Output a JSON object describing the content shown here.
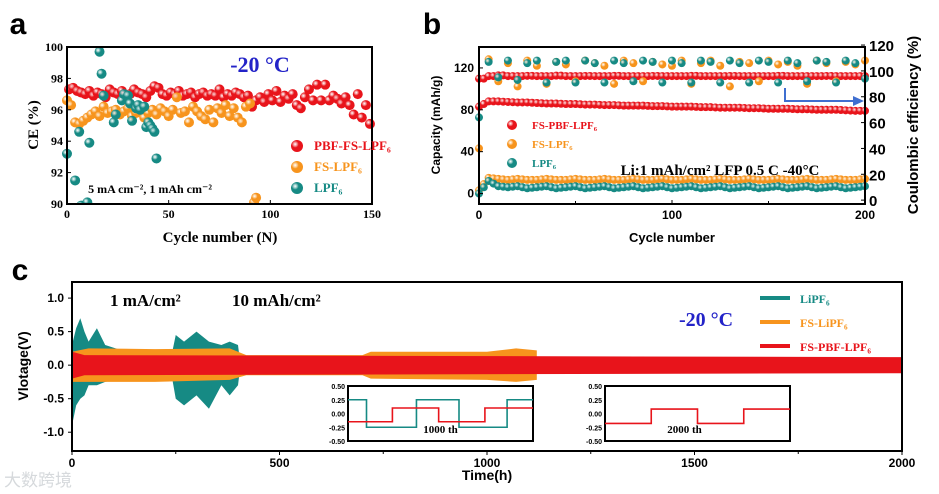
{
  "colors": {
    "red": "#e8141b",
    "orange": "#f7941d",
    "teal": "#168a84",
    "blue": "#2323c8",
    "arrow": "#3f6fd0"
  },
  "watermark": "大数跨境",
  "chart_data": [
    {
      "panel": "a",
      "type": "scatter",
      "xlabel": "Cycle number (N)",
      "ylabel": "CE (%)",
      "xlim": [
        0,
        150
      ],
      "ylim": [
        90,
        100
      ],
      "xticks": [
        0,
        50,
        100,
        150
      ],
      "yticks": [
        90,
        92,
        94,
        96,
        98,
        100
      ],
      "annotations": {
        "temp": "-20 °C",
        "condition": "5 mA cm⁻², 1 mAh cm⁻²"
      },
      "legend_position": "bottom-right",
      "series": [
        {
          "name": "PBF-FS-LPF₆",
          "color": "red",
          "x_start": 1,
          "x_step": 2,
          "values": [
            97.3,
            97.4,
            97.2,
            97.1,
            97.0,
            97.2,
            96.9,
            97.1,
            97.0,
            96.8,
            97.3,
            97.1,
            97.0,
            97.2,
            96.9,
            97.0,
            97.3,
            97.1,
            97.0,
            96.8,
            97.2,
            97.5,
            97.4,
            97.0,
            96.9,
            97.1,
            97.0,
            97.2,
            96.9,
            97.0,
            97.1,
            96.8,
            97.0,
            97.1,
            96.9,
            97.0,
            96.9,
            97.3,
            96.8,
            97.0,
            96.9,
            97.1,
            97.0,
            96.8,
            96.9,
            96.2,
            96.6,
            96.8,
            96.5,
            97.0,
            96.6,
            97.2,
            96.5,
            96.9,
            96.7,
            97.0,
            96.3,
            96.1,
            96.8,
            97.3,
            96.6,
            97.6,
            96.6,
            97.6,
            96.6,
            96.9,
            96.7,
            96.4,
            96.8,
            96.3,
            95.7,
            97.0,
            95.5,
            96.3,
            95.1
          ]
        },
        {
          "name": "FS-LPF₆",
          "color": "orange",
          "x_start": 0,
          "x_step": 2,
          "values": [
            96.6,
            96.3,
            95.2,
            95.1,
            95.3,
            95.5,
            95.7,
            95.9,
            95.6,
            96.2,
            95.8,
            95.9,
            96.0,
            95.7,
            95.9,
            96.1,
            95.6,
            95.8,
            96.1,
            95.5,
            95.8,
            96.0,
            95.7,
            96.1,
            95.9,
            95.6,
            96.0,
            96.8,
            95.8,
            95.9,
            95.2,
            96.2,
            95.9,
            95.6,
            95.4,
            96.0,
            95.2,
            96.1,
            95.8,
            96.3,
            95.6,
            96.1,
            95.5,
            95.2,
            96.2,
            96.4
          ],
          "extra_points": [
            [
              92,
              90.1
            ],
            [
              93,
              90.4
            ]
          ]
        },
        {
          "name": "LPF₆",
          "color": "teal",
          "points": [
            [
              0,
              93.2
            ],
            [
              4,
              91.5
            ],
            [
              6,
              94.6
            ],
            [
              7,
              89.9
            ],
            [
              10,
              90.1
            ],
            [
              11,
              93.9
            ],
            [
              16,
              99.7
            ],
            [
              17,
              98.3
            ],
            [
              18,
              96.9
            ],
            [
              23,
              95.2
            ],
            [
              24,
              95.7
            ],
            [
              27,
              96.6
            ],
            [
              28,
              97.0
            ],
            [
              30,
              96.9
            ],
            [
              31,
              96.4
            ],
            [
              32,
              95.3
            ],
            [
              34,
              96.1
            ],
            [
              35,
              96.3
            ],
            [
              36,
              96.0
            ],
            [
              38,
              96.2
            ],
            [
              39,
              94.9
            ],
            [
              40,
              95.2
            ],
            [
              41,
              95.0
            ],
            [
              42,
              94.8
            ],
            [
              43,
              94.6
            ],
            [
              44,
              92.9
            ]
          ]
        }
      ]
    },
    {
      "panel": "b",
      "type": "scatter",
      "xlabel": "Cycle number",
      "ylabel": "Capacity (mAh/g)",
      "ylabel_right": "Coulombic efficiency (%)",
      "xlim": [
        0,
        200
      ],
      "ylim": [
        -10,
        140
      ],
      "ylim_right": [
        -3,
        118.5
      ],
      "xticks": [
        0,
        100,
        200
      ],
      "yticks": [
        0,
        40,
        80,
        120
      ],
      "yticks_right": [
        0,
        20,
        40,
        60,
        80,
        100,
        120
      ],
      "annotations": {
        "condition": "Li:1 mAh/cm²   LFP   0.5 C   -40°C"
      },
      "legend_position": "center-left",
      "x_start": 0,
      "x_step": 5,
      "series": [
        {
          "name": "FS-PBF-LPF₆",
          "color": "red",
          "capacity": [
            83,
            88,
            88,
            87.5,
            87,
            87,
            86.5,
            86,
            86,
            85.5,
            85.5,
            85,
            85,
            84.5,
            84.5,
            84,
            84,
            84,
            83.5,
            83.5,
            83,
            83,
            83,
            82.5,
            82.5,
            82,
            82,
            82,
            81.5,
            81.5,
            81,
            81,
            81,
            80.5,
            80.5,
            80,
            80,
            80,
            79.5,
            79,
            79
          ],
          "ce": [
            94,
            96,
            96.5,
            96,
            96,
            96.2,
            96,
            96,
            96.3,
            96,
            96,
            96.1,
            96,
            96,
            96.2,
            96,
            96,
            96,
            96.1,
            96,
            96,
            96,
            96.2,
            96,
            96,
            96,
            96.1,
            96,
            96,
            96,
            96,
            96.2,
            96,
            96,
            96,
            96,
            96.1,
            96,
            96,
            96,
            96
          ]
        },
        {
          "name": "FS-LPF₆",
          "color": "orange",
          "capacity": [
            3,
            15,
            14,
            13,
            14,
            13,
            13,
            14,
            13,
            13,
            14,
            13,
            13,
            14,
            13,
            13,
            14,
            13,
            13,
            14,
            13,
            13,
            14,
            13,
            13,
            14,
            13,
            13,
            14,
            13,
            13,
            14,
            13,
            13,
            14,
            13,
            13,
            14,
            13,
            13,
            14
          ],
          "ce": [
            40,
            109,
            92,
            106,
            88,
            108,
            104,
            90,
            107,
            105,
            92,
            108,
            106,
            104,
            90,
            108,
            106,
            92,
            107,
            105,
            104,
            108,
            90,
            106,
            108,
            104,
            88,
            107,
            106,
            92,
            108,
            105,
            107,
            104,
            90,
            108,
            106,
            92,
            107,
            105,
            108
          ]
        },
        {
          "name": "LPF₆",
          "color": "teal",
          "capacity": [
            0,
            12,
            7,
            6,
            7,
            5,
            6,
            7,
            5,
            6,
            7,
            5,
            6,
            7,
            5,
            6,
            7,
            5,
            6,
            7,
            5,
            6,
            7,
            5,
            6,
            7,
            5,
            6,
            7,
            5,
            6,
            7,
            5,
            6,
            7,
            5,
            6,
            7,
            5,
            6,
            7
          ],
          "ce": [
            64,
            107,
            95,
            108,
            93,
            106,
            108,
            91,
            107,
            108,
            91,
            108,
            106,
            91,
            108,
            106,
            92,
            108,
            107,
            91,
            108,
            106,
            91,
            108,
            107,
            91,
            108,
            106,
            91,
            108,
            107,
            91,
            108,
            106,
            92,
            108,
            107,
            91,
            108,
            106,
            94
          ]
        }
      ]
    },
    {
      "panel": "c",
      "type": "line",
      "xlabel": "Time(h)",
      "ylabel": "Vlotage(V)",
      "xlim": [
        0,
        2000
      ],
      "ylim": [
        -1.28,
        1.24
      ],
      "xticks": [
        0,
        500,
        1000,
        1500,
        2000
      ],
      "yticks": [
        -1.0,
        -0.5,
        0.0,
        0.5,
        1.0
      ],
      "annotations": {
        "current": "1 mA/cm²",
        "capacity": "10 mAh/cm²",
        "temp": "-20 °C"
      },
      "legend_position": "top-right",
      "series": [
        {
          "name": "LiPF₆",
          "color": "teal",
          "envelope": [
            [
              0,
              0.3,
              -0.9
            ],
            [
              10,
              0.55,
              -0.6
            ],
            [
              20,
              0.7,
              -0.5
            ],
            [
              30,
              0.5,
              -0.45
            ],
            [
              40,
              0.35,
              -0.3
            ],
            [
              60,
              0.55,
              -0.3
            ],
            [
              80,
              0.3,
              -0.25
            ],
            [
              120,
              0.22,
              -0.2
            ],
            [
              130,
              0.15,
              -0.15
            ],
            [
              240,
              0.15,
              -0.15
            ],
            [
              250,
              0.45,
              -0.5
            ],
            [
              270,
              0.35,
              -0.6
            ],
            [
              300,
              0.5,
              -0.45
            ],
            [
              330,
              0.35,
              -0.65
            ],
            [
              360,
              0.3,
              -0.3
            ],
            [
              380,
              0.35,
              -0.45
            ],
            [
              400,
              0.3,
              -0.3
            ],
            [
              405,
              0.05,
              -0.05
            ]
          ]
        },
        {
          "name": "FS-LiPF₆",
          "color": "orange",
          "envelope": [
            [
              0,
              0.2,
              -0.25
            ],
            [
              40,
              0.25,
              -0.25
            ],
            [
              200,
              0.24,
              -0.25
            ],
            [
              380,
              0.25,
              -0.22
            ],
            [
              420,
              0.15,
              -0.15
            ],
            [
              700,
              0.15,
              -0.15
            ],
            [
              720,
              0.2,
              -0.2
            ],
            [
              1000,
              0.2,
              -0.22
            ],
            [
              1070,
              0.25,
              -0.25
            ],
            [
              1120,
              0.22,
              -0.22
            ]
          ]
        },
        {
          "name": "FS-PBF-LPF₆",
          "color": "red",
          "envelope": [
            [
              0,
              0.2,
              -0.2
            ],
            [
              30,
              0.15,
              -0.15
            ],
            [
              2000,
              0.12,
              -0.12
            ]
          ]
        }
      ],
      "insets": [
        {
          "label": "1000 th",
          "ylim": [
            -0.5,
            0.5
          ],
          "yticks": [
            "0.50",
            "0.25",
            "0.00",
            "-0.25",
            "-0.50"
          ],
          "lines": [
            {
              "color": "teal",
              "points": [
                [
                  0,
                  0.25
                ],
                [
                  0.1,
                  0.25
                ],
                [
                  0.1,
                  -0.25
                ],
                [
                  0.37,
                  -0.25
                ],
                [
                  0.37,
                  0.25
                ],
                [
                  0.6,
                  0.25
                ],
                [
                  0.6,
                  -0.25
                ],
                [
                  0.86,
                  -0.25
                ],
                [
                  0.86,
                  0.25
                ],
                [
                  1,
                  0.25
                ]
              ]
            },
            {
              "color": "red",
              "points": [
                [
                  0,
                  -0.15
                ],
                [
                  0.24,
                  -0.15
                ],
                [
                  0.24,
                  0.1
                ],
                [
                  0.49,
                  0.1
                ],
                [
                  0.49,
                  -0.15
                ],
                [
                  0.74,
                  -0.15
                ],
                [
                  0.74,
                  0.1
                ],
                [
                  1,
                  0.1
                ]
              ]
            }
          ]
        },
        {
          "label": "2000 th",
          "ylim": [
            -0.5,
            0.5
          ],
          "yticks": [
            "0.50",
            "0.25",
            "0.00",
            "-0.25",
            "-0.50"
          ],
          "lines": [
            {
              "color": "red",
              "points": [
                [
                  0,
                  -0.18
                ],
                [
                  0.25,
                  -0.18
                ],
                [
                  0.25,
                  0.08
                ],
                [
                  0.5,
                  0.08
                ],
                [
                  0.5,
                  -0.18
                ],
                [
                  0.75,
                  -0.18
                ],
                [
                  0.75,
                  0.08
                ],
                [
                  1,
                  0.08
                ]
              ]
            }
          ]
        }
      ]
    }
  ],
  "panel_labels": [
    "a",
    "b",
    "c"
  ]
}
